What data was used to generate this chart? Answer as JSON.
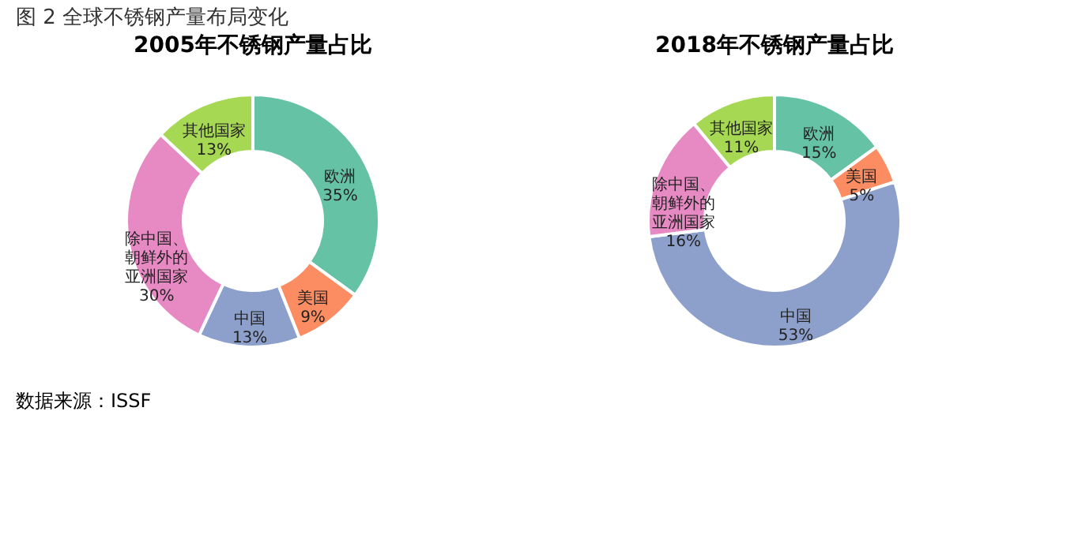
{
  "chart_data": [
    {
      "type": "donut",
      "title": "2005年不锈钢产量占比",
      "categories": [
        "欧洲",
        "美国",
        "中国",
        "除中国、朝鲜外的亚洲国家",
        "其他国家"
      ],
      "values": [
        35,
        9,
        13,
        30,
        13
      ],
      "colors": [
        "#66c2a5",
        "#fc8d62",
        "#8da0cb",
        "#e78ac3",
        "#a6d854"
      ],
      "value_labels": [
        "35%",
        "9%",
        "13%",
        "30%",
        "13%"
      ],
      "annotations": [
        "图 2  全球不锈钢产量布局变化",
        "数据来源：ISSF"
      ]
    },
    {
      "type": "donut",
      "title": "2018年不锈钢产量占比",
      "categories": [
        "欧洲",
        "美国",
        "中国",
        "除中国、朝鲜外的亚洲国家",
        "其他国家"
      ],
      "values": [
        15,
        5,
        53,
        16,
        11
      ],
      "colors": [
        "#66c2a5",
        "#fc8d62",
        "#8da0cb",
        "#e78ac3",
        "#a6d854"
      ],
      "value_labels": [
        "15%",
        "5%",
        "53%",
        "16%",
        "11%"
      ]
    }
  ]
}
